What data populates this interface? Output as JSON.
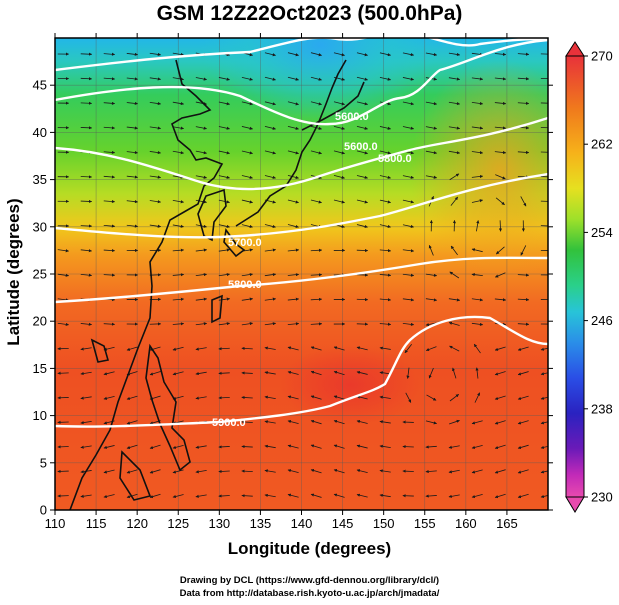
{
  "title": "GSM 12Z22Oct2023 (500.0hPa)",
  "axes": {
    "xlabel": "Longitude (degrees)",
    "ylabel": "Latitude  (degrees)",
    "x_ticks": [
      "110",
      "115",
      "120",
      "125",
      "130",
      "135",
      "140",
      "145",
      "150",
      "155",
      "160",
      "165"
    ],
    "y_ticks": [
      "0",
      "5",
      "10",
      "15",
      "20",
      "25",
      "30",
      "35",
      "40",
      "45"
    ]
  },
  "colorbar": {
    "labels": [
      "270",
      "262",
      "254",
      "246",
      "238",
      "230"
    ],
    "colors": [
      "#e8323a",
      "#f07a1c",
      "#f6b21a",
      "#e6e020",
      "#9ee02a",
      "#32c23c",
      "#2ad08a",
      "#28c4d8",
      "#2a8ee8",
      "#2a4ee6",
      "#2a22c0",
      "#6a1ab8",
      "#c22ab8",
      "#e84aae"
    ]
  },
  "contour_labels": [
    "5600.0",
    "5600.0",
    "5700.0",
    "5800.0",
    "5900.0",
    "5800.0"
  ],
  "credits": {
    "line1": "Drawing by DCL (https://www.gfd-dennou.org/library/dcl/)",
    "line2": "Data from http://database.rish.kyoto-u.ac.jp/arch/jmadata/"
  },
  "chart_data": {
    "type": "heatmap",
    "title": "GSM 12Z22Oct2023 (500.0hPa)",
    "xlabel": "Longitude (degrees)",
    "ylabel": "Latitude  (degrees)",
    "xlim": [
      110,
      170
    ],
    "ylim": [
      0,
      50
    ],
    "colorbar_range": [
      230,
      270
    ],
    "colorbar_ticks": [
      230,
      238,
      246,
      254,
      262,
      270
    ],
    "contour_levels": [
      5600,
      5700,
      5800,
      5900
    ],
    "grid": true
  }
}
